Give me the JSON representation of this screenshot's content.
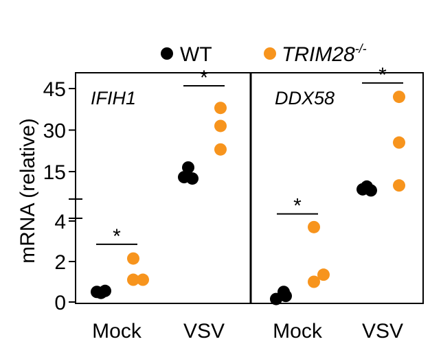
{
  "chart_data": {
    "type": "scatter",
    "ylabel": "mRNA (relative)",
    "y_axis": {
      "broken": true,
      "lower_segment": {
        "range": [
          0,
          4.5
        ],
        "ticks": [
          0,
          2,
          4
        ]
      },
      "upper_segment": {
        "range": [
          10,
          50
        ],
        "ticks": [
          15,
          30,
          45
        ]
      }
    },
    "legend": {
      "position": "top",
      "entries": [
        {
          "label": "WT",
          "color": "#000000",
          "italic": false,
          "superscript": ""
        },
        {
          "label": "TRIM28",
          "color": "#f7941d",
          "italic": true,
          "superscript": "-/-"
        }
      ]
    },
    "series_colors": {
      "WT": "#000000",
      "TRIM28-/-": "#f7941d"
    },
    "panels": [
      {
        "title": "IFIH1",
        "categories": [
          "Mock",
          "VSV"
        ],
        "points": {
          "Mock": {
            "WT": [
              0.45,
              0.55,
              0.5
            ],
            "TRIM28-/-": [
              2.15,
              1.1,
              1.1
            ]
          },
          "VSV": {
            "WT": [
              16.5,
              12.5,
              13.0
            ],
            "TRIM28-/-": [
              38.0,
              31.5,
              23.0
            ]
          }
        },
        "significance": [
          {
            "category": "Mock",
            "label": "*",
            "y": 2.85
          },
          {
            "category": "VSV",
            "label": "*",
            "y": 46.0
          }
        ]
      },
      {
        "title": "DDX58",
        "categories": [
          "Mock",
          "VSV"
        ],
        "points": {
          "Mock": {
            "WT": [
              0.5,
              0.15,
              0.3
            ],
            "TRIM28-/-": [
              3.7,
              1.0,
              1.35
            ]
          },
          "VSV": {
            "WT": [
              9.6,
              8.2,
              8.6
            ],
            "TRIM28-/-": [
              42.0,
              25.5,
              10.0
            ]
          }
        },
        "significance": [
          {
            "category": "Mock",
            "label": "*",
            "y": 4.35
          },
          {
            "category": "VSV",
            "label": "*",
            "y": 47.0
          }
        ]
      }
    ]
  }
}
